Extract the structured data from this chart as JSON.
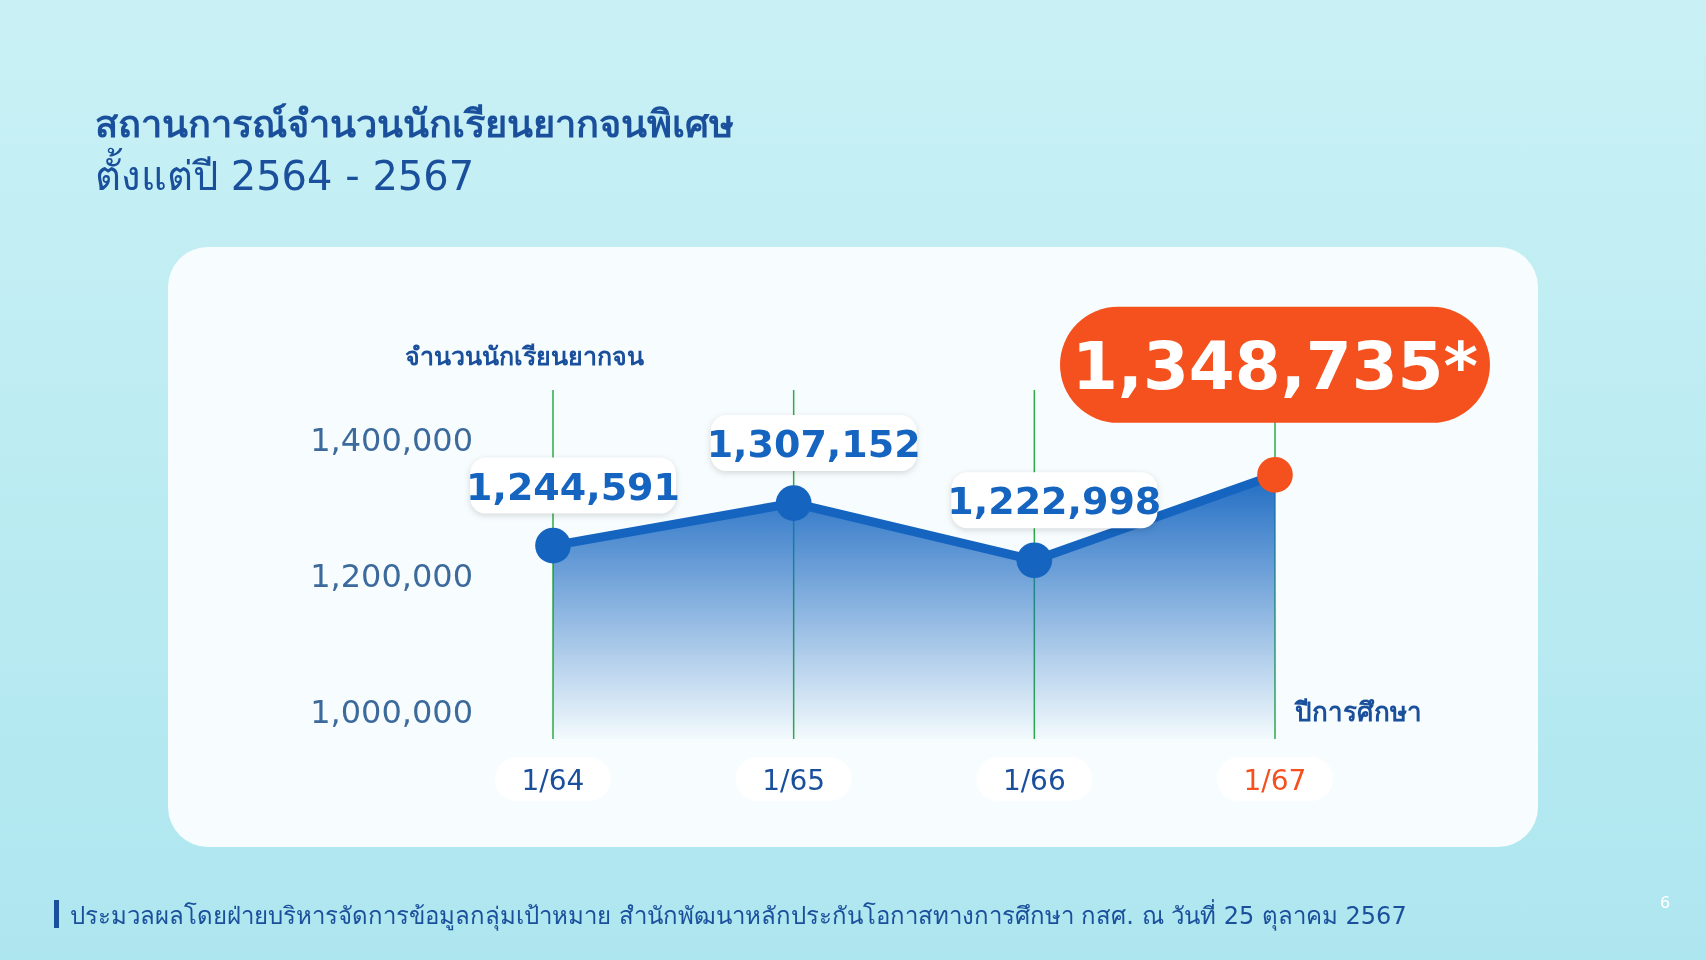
{
  "chart_data": {
    "type": "area",
    "title": "สถานการณ์จำนวนนักเรียนยากจนพิเศษ",
    "subtitle": "ตั้งแต่ปี 2564 - 2567",
    "ylabel": "จำนวนนักเรียนยากจน",
    "xlabel": "ปีการศึกษา",
    "categories": [
      "1/64",
      "1/65",
      "1/66",
      "1/67"
    ],
    "series": [
      {
        "color": "#1565c0",
        "colors": [
          "#1565c0",
          "#1565c0",
          "#1565c0",
          "#f4511e"
        ],
        "values": [
          1244591,
          1307152,
          1222998,
          1348735
        ],
        "value_labels": [
          "1,244,591",
          "1,307,152",
          "1,222,998",
          "1,348,735*"
        ]
      }
    ],
    "ylim": [
      960000,
      1400000
    ],
    "yticks": [
      {
        "value": 1000000,
        "label": "1,000,000"
      },
      {
        "value": 1200000,
        "label": "1,200,000"
      },
      {
        "value": 1400000,
        "label": "1,400,000"
      }
    ],
    "grid": "x",
    "marker": "circle",
    "annotations": [
      "ประมวลผลโดยฝ่ายบริหารจัดการข้อมูลกลุ่มเป้าหมาย สำนักพัฒนาหลักประกันโอกาสทางการศึกษา กสศ. ณ วันที่ 25 ตุลาคม 2567",
      "6"
    ]
  }
}
